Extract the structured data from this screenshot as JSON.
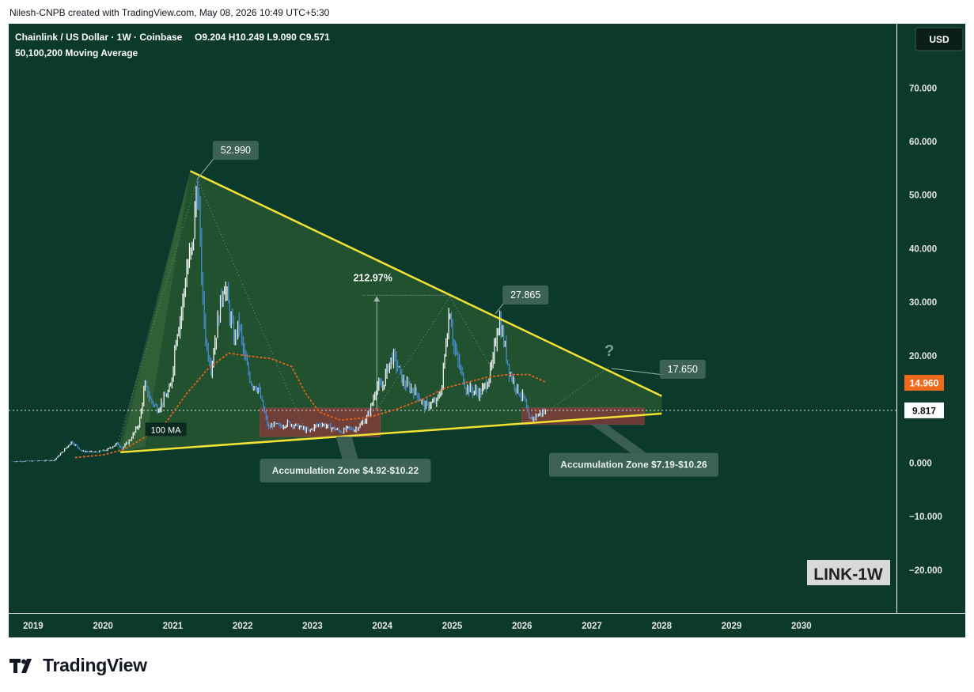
{
  "caption": "Nilesh-CNPB created with TradingView.com, May 08, 2026 10:49 UTC+5:30",
  "header": {
    "symbol": "Chainlink / US Dollar · 1W · Coinbase",
    "ohlc": "O9.204  H10.249  L9.090  C9.571",
    "indicator": "50,100,200 Moving Average",
    "currency_button": "USD"
  },
  "footer": {
    "brand": "TradingView"
  },
  "colors": {
    "background": "#0b3a2c",
    "candle_up": "#ffffff",
    "candle_down": "#4a90d9",
    "ma100": "#e0641e",
    "trendline": "#f2e233",
    "zone": "#8b3a3a"
  },
  "chart_data": {
    "type": "candlestick",
    "timeframe": "1W",
    "symbol": "LINK/USD",
    "yaxis": {
      "ticks": [
        -20,
        -10,
        0,
        10,
        20,
        30,
        40,
        50,
        60,
        70
      ],
      "tick_labels": [
        "−20.000",
        "−10.000",
        "0.000",
        "10.000",
        "20.000",
        "30.000",
        "40.000",
        "50.000",
        "60.000",
        "70.000"
      ],
      "range": [
        -28,
        82
      ]
    },
    "xaxis": {
      "ticks": [
        2019,
        2020,
        2021,
        2022,
        2023,
        2024,
        2025,
        2026,
        2027,
        2028,
        2029,
        2030
      ],
      "range": [
        2018.65,
        2031.35
      ]
    },
    "price_path": [
      [
        2018.7,
        0.3
      ],
      [
        2019.0,
        0.35
      ],
      [
        2019.3,
        0.5
      ],
      [
        2019.45,
        2.5
      ],
      [
        2019.55,
        4.0
      ],
      [
        2019.7,
        2.2
      ],
      [
        2019.9,
        2.0
      ],
      [
        2020.05,
        2.4
      ],
      [
        2020.2,
        3.6
      ],
      [
        2020.28,
        2.8
      ],
      [
        2020.4,
        4.5
      ],
      [
        2020.52,
        7.5
      ],
      [
        2020.6,
        14.5
      ],
      [
        2020.67,
        12.0
      ],
      [
        2020.78,
        10.0
      ],
      [
        2020.88,
        12.0
      ],
      [
        2020.97,
        14.0
      ],
      [
        2021.05,
        24.0
      ],
      [
        2021.12,
        28.0
      ],
      [
        2021.2,
        36.0
      ],
      [
        2021.28,
        40.0
      ],
      [
        2021.35,
        52.99
      ],
      [
        2021.43,
        30.0
      ],
      [
        2021.48,
        22.0
      ],
      [
        2021.55,
        18.0
      ],
      [
        2021.63,
        25.0
      ],
      [
        2021.73,
        34.0
      ],
      [
        2021.8,
        29.0
      ],
      [
        2021.88,
        23.0
      ],
      [
        2021.95,
        26.0
      ],
      [
        2022.02,
        20.0
      ],
      [
        2022.12,
        15.0
      ],
      [
        2022.22,
        14.0
      ],
      [
        2022.3,
        10.0
      ],
      [
        2022.37,
        6.5
      ],
      [
        2022.45,
        7.2
      ],
      [
        2022.55,
        6.8
      ],
      [
        2022.65,
        7.5
      ],
      [
        2022.75,
        7.0
      ],
      [
        2022.85,
        6.5
      ],
      [
        2022.95,
        5.9
      ],
      [
        2023.05,
        7.0
      ],
      [
        2023.12,
        7.3
      ],
      [
        2023.22,
        6.8
      ],
      [
        2023.32,
        6.3
      ],
      [
        2023.42,
        5.8
      ],
      [
        2023.5,
        6.5
      ],
      [
        2023.6,
        6.2
      ],
      [
        2023.7,
        7.2
      ],
      [
        2023.78,
        8.5
      ],
      [
        2023.85,
        11.0
      ],
      [
        2023.92,
        14.5
      ],
      [
        2024.0,
        14.0
      ],
      [
        2024.08,
        18.0
      ],
      [
        2024.15,
        20.0
      ],
      [
        2024.22,
        18.0
      ],
      [
        2024.3,
        15.0
      ],
      [
        2024.4,
        14.0
      ],
      [
        2024.5,
        13.0
      ],
      [
        2024.6,
        10.5
      ],
      [
        2024.68,
        11.0
      ],
      [
        2024.78,
        11.5
      ],
      [
        2024.85,
        14.0
      ],
      [
        2024.92,
        24.0
      ],
      [
        2024.97,
        29.0
      ],
      [
        2025.02,
        22.0
      ],
      [
        2025.1,
        18.0
      ],
      [
        2025.2,
        14.0
      ],
      [
        2025.3,
        13.5
      ],
      [
        2025.4,
        13.0
      ],
      [
        2025.5,
        15.0
      ],
      [
        2025.58,
        18.5
      ],
      [
        2025.64,
        25.0
      ],
      [
        2025.68,
        26.5
      ],
      [
        2025.75,
        22.0
      ],
      [
        2025.82,
        17.0
      ],
      [
        2025.9,
        14.5
      ],
      [
        2025.97,
        13.0
      ],
      [
        2026.03,
        12.0
      ],
      [
        2026.1,
        8.0
      ],
      [
        2026.18,
        8.6
      ],
      [
        2026.27,
        9.3
      ],
      [
        2026.35,
        9.571
      ]
    ],
    "moving_average_100": [
      [
        2019.6,
        1.0
      ],
      [
        2020.0,
        1.5
      ],
      [
        2020.3,
        2.5
      ],
      [
        2020.6,
        4.8
      ],
      [
        2020.9,
        7.5
      ],
      [
        2021.2,
        13.0
      ],
      [
        2021.5,
        17.5
      ],
      [
        2021.8,
        20.5
      ],
      [
        2022.05,
        20.0
      ],
      [
        2022.4,
        19.5
      ],
      [
        2022.7,
        18.0
      ],
      [
        2022.9,
        13.0
      ],
      [
        2023.1,
        9.5
      ],
      [
        2023.4,
        8.0
      ],
      [
        2023.8,
        8.5
      ],
      [
        2024.2,
        10.0
      ],
      [
        2024.6,
        12.0
      ],
      [
        2024.9,
        14.0
      ],
      [
        2025.2,
        15.0
      ],
      [
        2025.5,
        16.0
      ],
      [
        2025.8,
        16.5
      ],
      [
        2026.1,
        16.5
      ],
      [
        2026.35,
        15.0
      ]
    ],
    "resistance_line": [
      [
        2021.25,
        54.5
      ],
      [
        2028.0,
        12.5
      ]
    ],
    "support_line": [
      [
        2020.25,
        2.0
      ],
      [
        2028.0,
        9.2
      ]
    ],
    "triangle_fill": [
      [
        2020.25,
        2.0
      ],
      [
        2021.25,
        54.5
      ],
      [
        2028.0,
        12.5
      ],
      [
        2028.0,
        9.2
      ]
    ],
    "zones": [
      {
        "x0": 2022.25,
        "x1": 2023.97,
        "y0": 4.92,
        "y1": 10.22,
        "label": "Accumulation Zone $4.92-$10.22"
      },
      {
        "x0": 2026.0,
        "x1": 2027.75,
        "y0": 7.19,
        "y1": 10.26,
        "label": "Accumulation Zone $7.19-$10.26"
      }
    ],
    "annotations": [
      {
        "type": "price_label",
        "text": "52.990",
        "anchor": [
          2021.35,
          53
        ],
        "at": [
          2021.9,
          58.5
        ]
      },
      {
        "type": "price_label",
        "text": "27.865",
        "anchor": [
          2025.62,
          27.865
        ],
        "at": [
          2026.05,
          31.5
        ]
      },
      {
        "type": "price_label",
        "text": "17.650",
        "anchor": [
          2027.28,
          17.65
        ],
        "at": [
          2028.3,
          17.65
        ]
      },
      {
        "type": "percent_move",
        "text": "212.97%",
        "from": [
          2023.92,
          10.0
        ],
        "to": [
          2024.97,
          31.3
        ]
      },
      {
        "type": "question",
        "text": "?",
        "at": [
          2027.25,
          20.0
        ]
      },
      {
        "type": "ma_label",
        "text": "100 MA",
        "at": [
          2020.9,
          6.2
        ]
      },
      {
        "type": "watermark",
        "text": "LINK-1W"
      }
    ],
    "price_tags": [
      {
        "text": "14.960",
        "value": 14.96,
        "color": "#f06a1c"
      },
      {
        "text": "9.817",
        "value": 9.817,
        "color": "#ffffff"
      }
    ],
    "current_price_line": 9.817
  }
}
